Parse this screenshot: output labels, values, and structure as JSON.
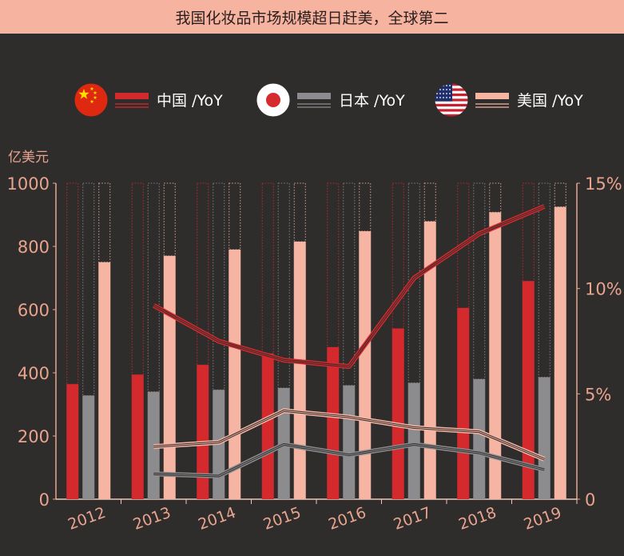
{
  "chart_data": {
    "type": "bar",
    "title": "我国化妆品市场规模超日赶美，全球第二",
    "ylabel": "亿美元",
    "categories": [
      "2012",
      "2013",
      "2014",
      "2015",
      "2016",
      "2017",
      "2018",
      "2019"
    ],
    "ylim": [
      0,
      1000
    ],
    "yticks": [
      "0",
      "200",
      "400",
      "600",
      "800",
      "1000"
    ],
    "y2lim": [
      0,
      15
    ],
    "y2ticks": [
      "0",
      "5%",
      "10%",
      "15%"
    ],
    "legend_position": "top",
    "series": [
      {
        "name": "中国 /YoY",
        "flag": "china-flag",
        "color": "#d42a2e",
        "values": [
          364,
          394,
          425,
          461,
          481,
          540,
          605,
          690
        ],
        "yoy": [
          null,
          9.2,
          7.5,
          6.6,
          6.3,
          10.5,
          12.6,
          13.9
        ]
      },
      {
        "name": "日本 /YoY",
        "flag": "japan-flag",
        "color": "#8c8c8e",
        "values": [
          328,
          340,
          346,
          352,
          360,
          368,
          380,
          386
        ],
        "yoy": [
          null,
          1.2,
          1.1,
          2.6,
          2.1,
          2.6,
          2.2,
          1.4
        ]
      },
      {
        "name": "美国 /YoY",
        "flag": "usa-flag",
        "color": "#f6b5a3",
        "values": [
          750,
          770,
          790,
          815,
          848,
          879,
          908,
          925
        ],
        "yoy": [
          null,
          2.5,
          2.7,
          4.2,
          3.9,
          3.4,
          3.2,
          1.9
        ]
      }
    ]
  }
}
